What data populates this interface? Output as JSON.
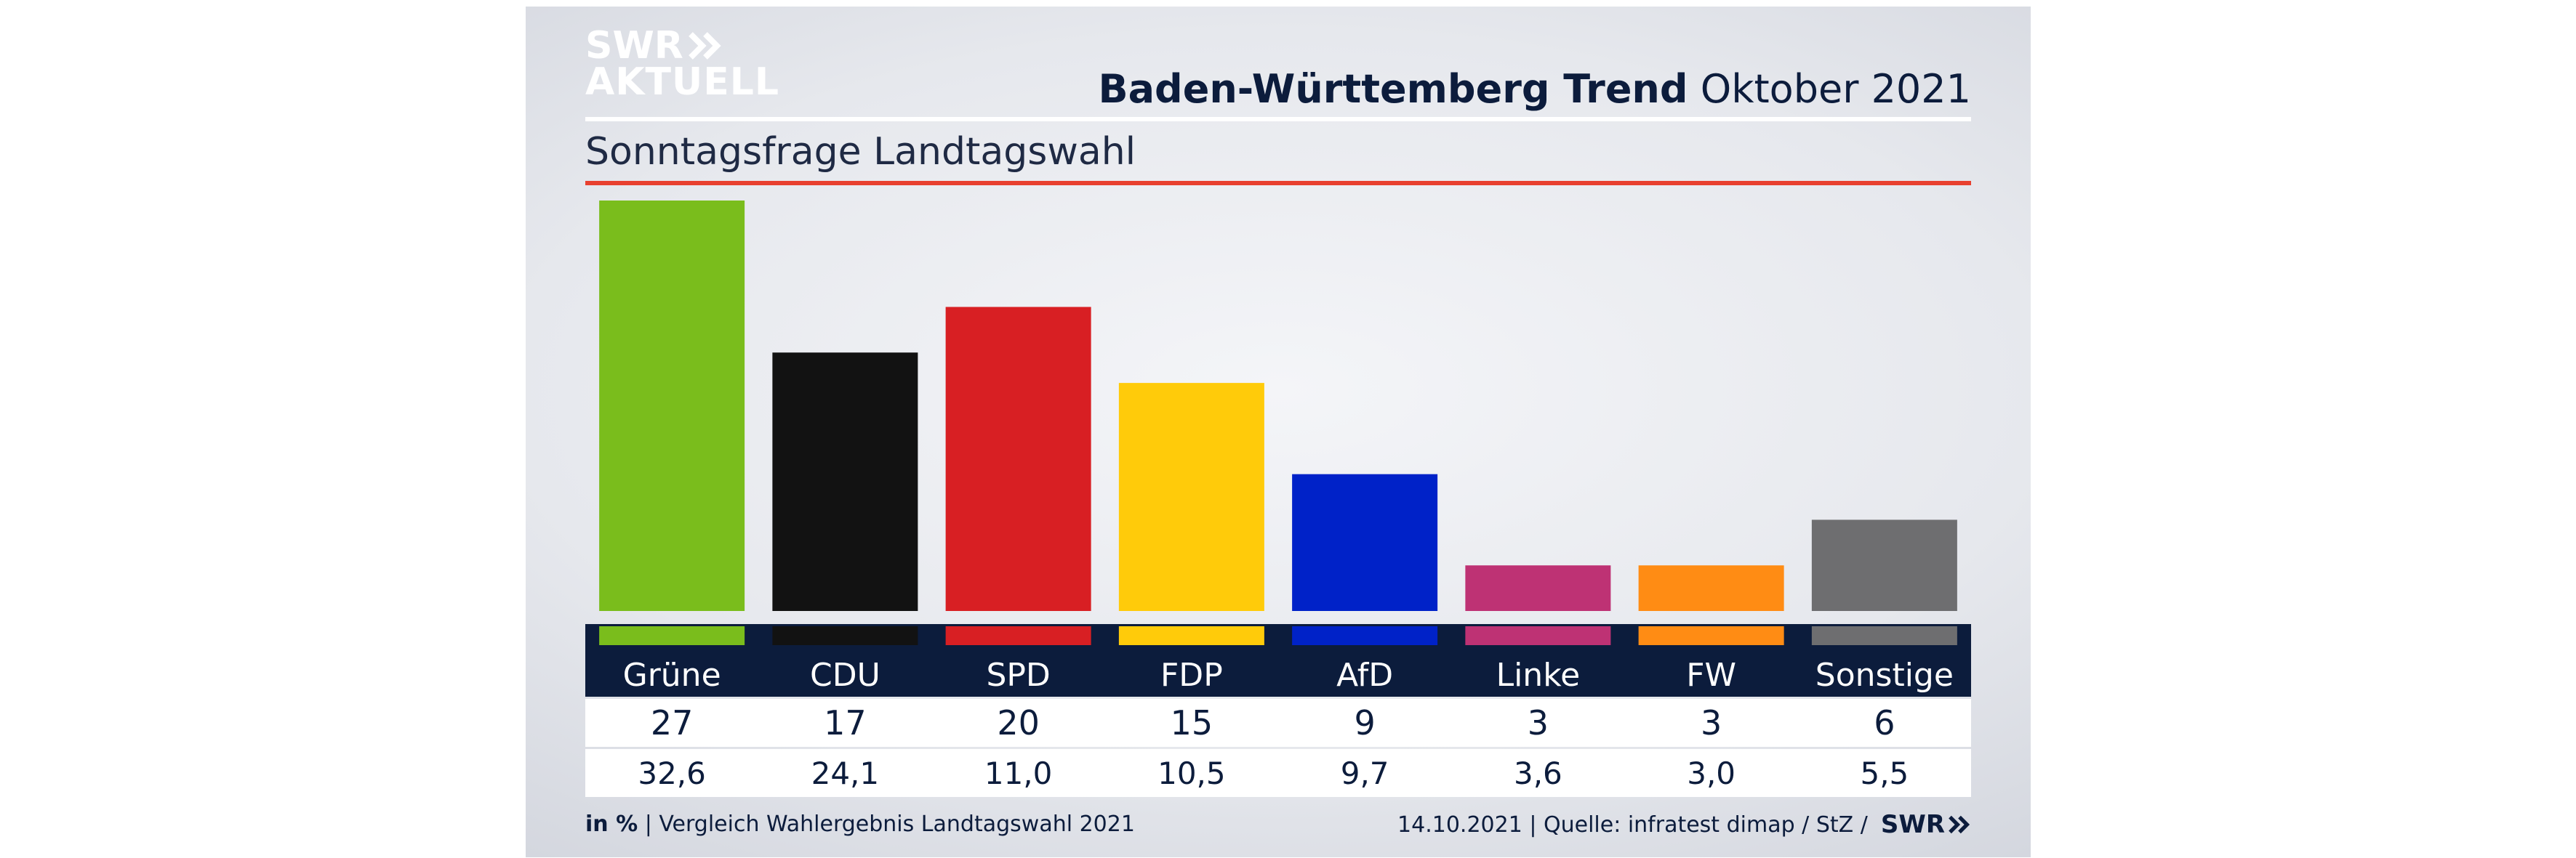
{
  "logo": {
    "line1": "SWR",
    "line2": "AKTUELL"
  },
  "header": {
    "title_bold": "Baden-Württemberg Trend",
    "title_rest": "Oktober 2021"
  },
  "subtitle": "Sonntagsfrage Landtagswahl",
  "footer": {
    "unit": "in %",
    "left": " | Vergleich Wahlergebnis Landtagswahl 2021",
    "right": "14.10.2021 | Quelle: infratest dimap / StZ /",
    "brand": "SWR"
  },
  "colors": {
    "navy": "#0c1c3c",
    "accent_red": "#e8402f"
  },
  "chart_data": {
    "type": "bar",
    "categories": [
      "Grüne",
      "CDU",
      "SPD",
      "FDP",
      "AfD",
      "Linke",
      "FW",
      "Sonstige"
    ],
    "values": [
      27,
      17,
      20,
      15,
      9,
      3,
      3,
      6
    ],
    "comparison": [
      "32,6",
      "24,1",
      "11,0",
      "10,5",
      "9,7",
      "3,6",
      "3,0",
      "5,5"
    ],
    "values_display": [
      "27",
      "17",
      "20",
      "15",
      "9",
      "3",
      "3",
      "6"
    ],
    "colors": [
      "#7abd1c",
      "#121212",
      "#d81f23",
      "#ffcb0a",
      "#0022c8",
      "#be3274",
      "#ff8c14",
      "#6e6e70"
    ],
    "ylim": [
      0,
      27
    ],
    "grid": false,
    "xlabel": "",
    "ylabel": ""
  }
}
